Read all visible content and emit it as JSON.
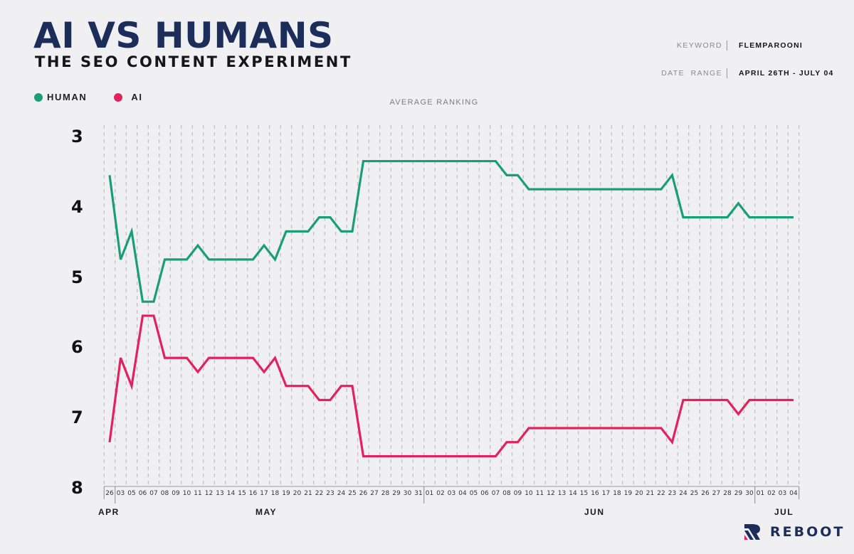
{
  "header": {
    "title": "AI VS HUMANS",
    "subtitle": "THE SEO CONTENT EXPERIMENT"
  },
  "meta": {
    "keyword_label": "KEYWORD",
    "keyword_value": "FLEMPAROONI",
    "date_range_label": "DATE  RANGE",
    "date_range_value": "APRIL 26TH - JULY 04"
  },
  "legend": {
    "human_label": "HUMAN",
    "ai_label": "AI",
    "human_color": "#1a9e78",
    "ai_color": "#e2225e"
  },
  "logo": {
    "text": "REBOOT",
    "navy": "#1c2d5a",
    "pink": "#e2225e"
  },
  "chart_data": {
    "type": "line",
    "title": "AVERAGE RANKING",
    "xlabel": "",
    "ylabel": "Average Ranking",
    "ylim": [
      8,
      3
    ],
    "y_inverted": true,
    "yticks": [
      "3",
      "4",
      "5",
      "6",
      "7",
      "8"
    ],
    "grid": "vertical dashed",
    "legend_position": "top-left",
    "month_labels": [
      {
        "label": "APR",
        "index": 0
      },
      {
        "label": "MAY",
        "index": 14
      },
      {
        "label": "JUN",
        "index": 44
      },
      {
        "label": "JUL",
        "index": 60
      }
    ],
    "categories": [
      "26",
      "03",
      "05",
      "06",
      "07",
      "08",
      "09",
      "10",
      "11",
      "12",
      "13",
      "14",
      "15",
      "16",
      "17",
      "18",
      "19",
      "20",
      "21",
      "22",
      "23",
      "24",
      "25",
      "26",
      "27",
      "28",
      "29",
      "30",
      "31",
      "01",
      "02",
      "03",
      "04",
      "05",
      "06",
      "07",
      "08",
      "09",
      "10",
      "11",
      "12",
      "13",
      "14",
      "15",
      "16",
      "17",
      "18",
      "19",
      "20",
      "21",
      "22",
      "23",
      "24",
      "25",
      "26",
      "27",
      "28",
      "29",
      "30",
      "01",
      "02",
      "03",
      "04"
    ],
    "series": [
      {
        "name": "HUMAN",
        "color": "#1a9e78",
        "values": [
          3.55,
          4.75,
          4.35,
          5.35,
          5.35,
          4.75,
          4.75,
          4.75,
          4.55,
          4.75,
          4.75,
          4.75,
          4.75,
          4.75,
          4.55,
          4.75,
          4.35,
          4.35,
          4.35,
          4.15,
          4.15,
          4.35,
          4.35,
          3.35,
          3.35,
          3.35,
          3.35,
          3.35,
          3.35,
          3.35,
          3.35,
          3.35,
          3.35,
          3.35,
          3.35,
          3.35,
          3.55,
          3.55,
          3.75,
          3.75,
          3.75,
          3.75,
          3.75,
          3.75,
          3.75,
          3.75,
          3.75,
          3.75,
          3.75,
          3.75,
          3.75,
          3.55,
          4.15,
          4.15,
          4.15,
          4.15,
          4.15,
          3.95,
          4.15,
          4.15,
          4.15,
          4.15,
          4.15
        ]
      },
      {
        "name": "AI",
        "color": "#e2225e",
        "values": [
          7.35,
          6.15,
          6.55,
          5.55,
          5.55,
          6.15,
          6.15,
          6.15,
          6.35,
          6.15,
          6.15,
          6.15,
          6.15,
          6.15,
          6.35,
          6.15,
          6.55,
          6.55,
          6.55,
          6.75,
          6.75,
          6.55,
          6.55,
          7.55,
          7.55,
          7.55,
          7.55,
          7.55,
          7.55,
          7.55,
          7.55,
          7.55,
          7.55,
          7.55,
          7.55,
          7.55,
          7.35,
          7.35,
          7.15,
          7.15,
          7.15,
          7.15,
          7.15,
          7.15,
          7.15,
          7.15,
          7.15,
          7.15,
          7.15,
          7.15,
          7.15,
          7.35,
          6.75,
          6.75,
          6.75,
          6.75,
          6.75,
          6.95,
          6.75,
          6.75,
          6.75,
          6.75,
          6.75
        ]
      }
    ]
  }
}
